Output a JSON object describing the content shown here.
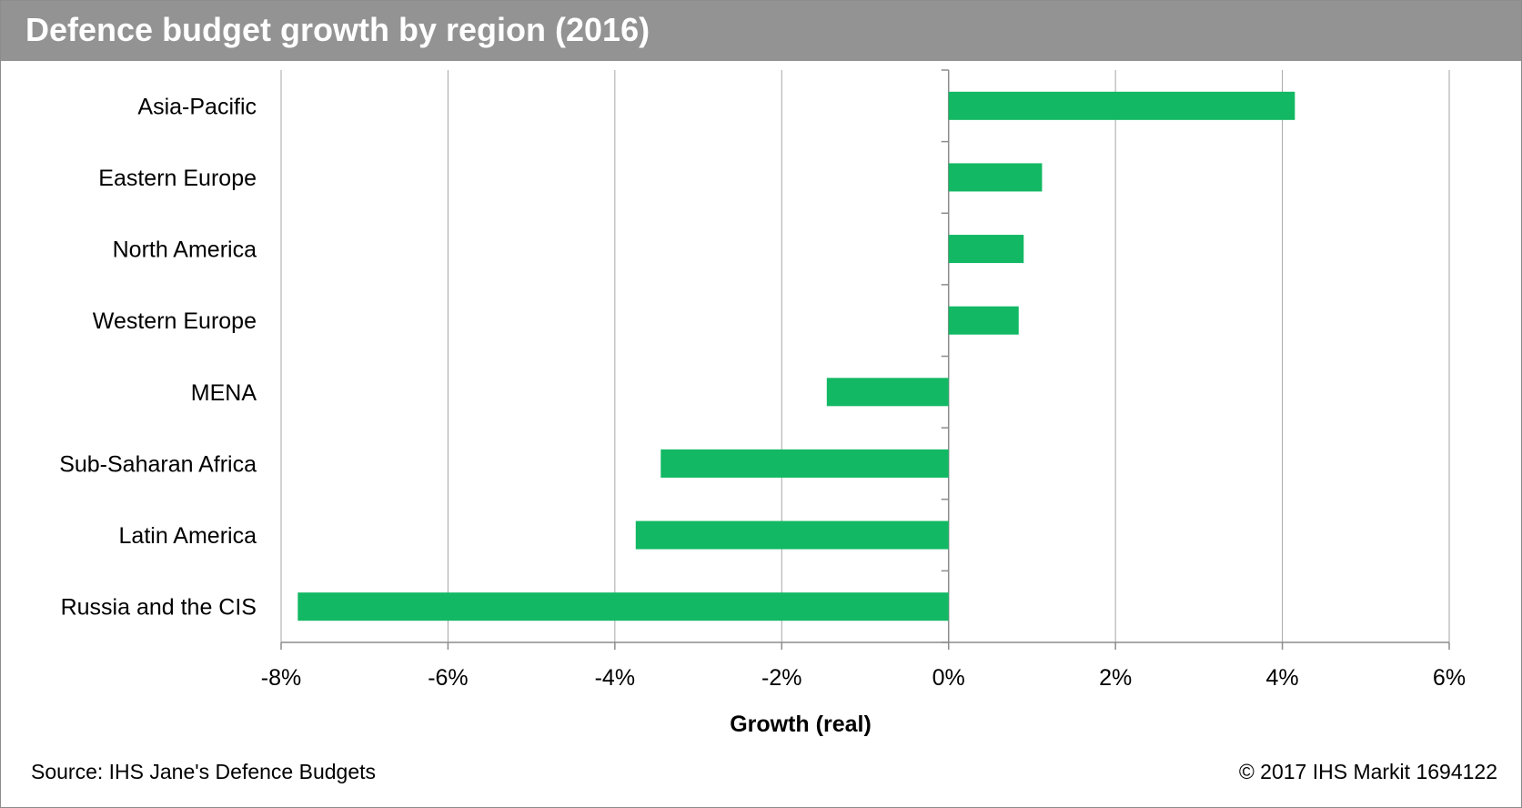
{
  "header": {
    "title": "Defence budget growth by region (2016)"
  },
  "footer": {
    "source": "Source: IHS Jane's Defence Budgets",
    "copyright": "© 2017 IHS Markit   1694122"
  },
  "colors": {
    "bar": "#12b863",
    "grid": "#a6a6a6",
    "axis": "#8c8c8c",
    "title_bar": "#939393"
  },
  "chart_data": {
    "type": "bar",
    "orientation": "horizontal",
    "title": "Defence budget growth by region (2016)",
    "xlabel": "Growth (real)",
    "ylabel": "",
    "categories": [
      "Asia-Pacific",
      "Eastern Europe",
      "North America",
      "Western Europe",
      "MENA",
      "Sub-Saharan Africa",
      "Latin America",
      "Russia and the CIS"
    ],
    "values": [
      4.15,
      1.12,
      0.9,
      0.84,
      -1.46,
      -3.45,
      -3.75,
      -7.8
    ],
    "xlim": [
      -8,
      6
    ],
    "xticks": [
      -8,
      -6,
      -4,
      -2,
      0,
      2,
      4,
      6
    ],
    "xtick_labels": [
      "-8%",
      "-6%",
      "-4%",
      "-2%",
      "0%",
      "2%",
      "4%",
      "6%"
    ],
    "grid": "vertical",
    "legend": "none"
  }
}
